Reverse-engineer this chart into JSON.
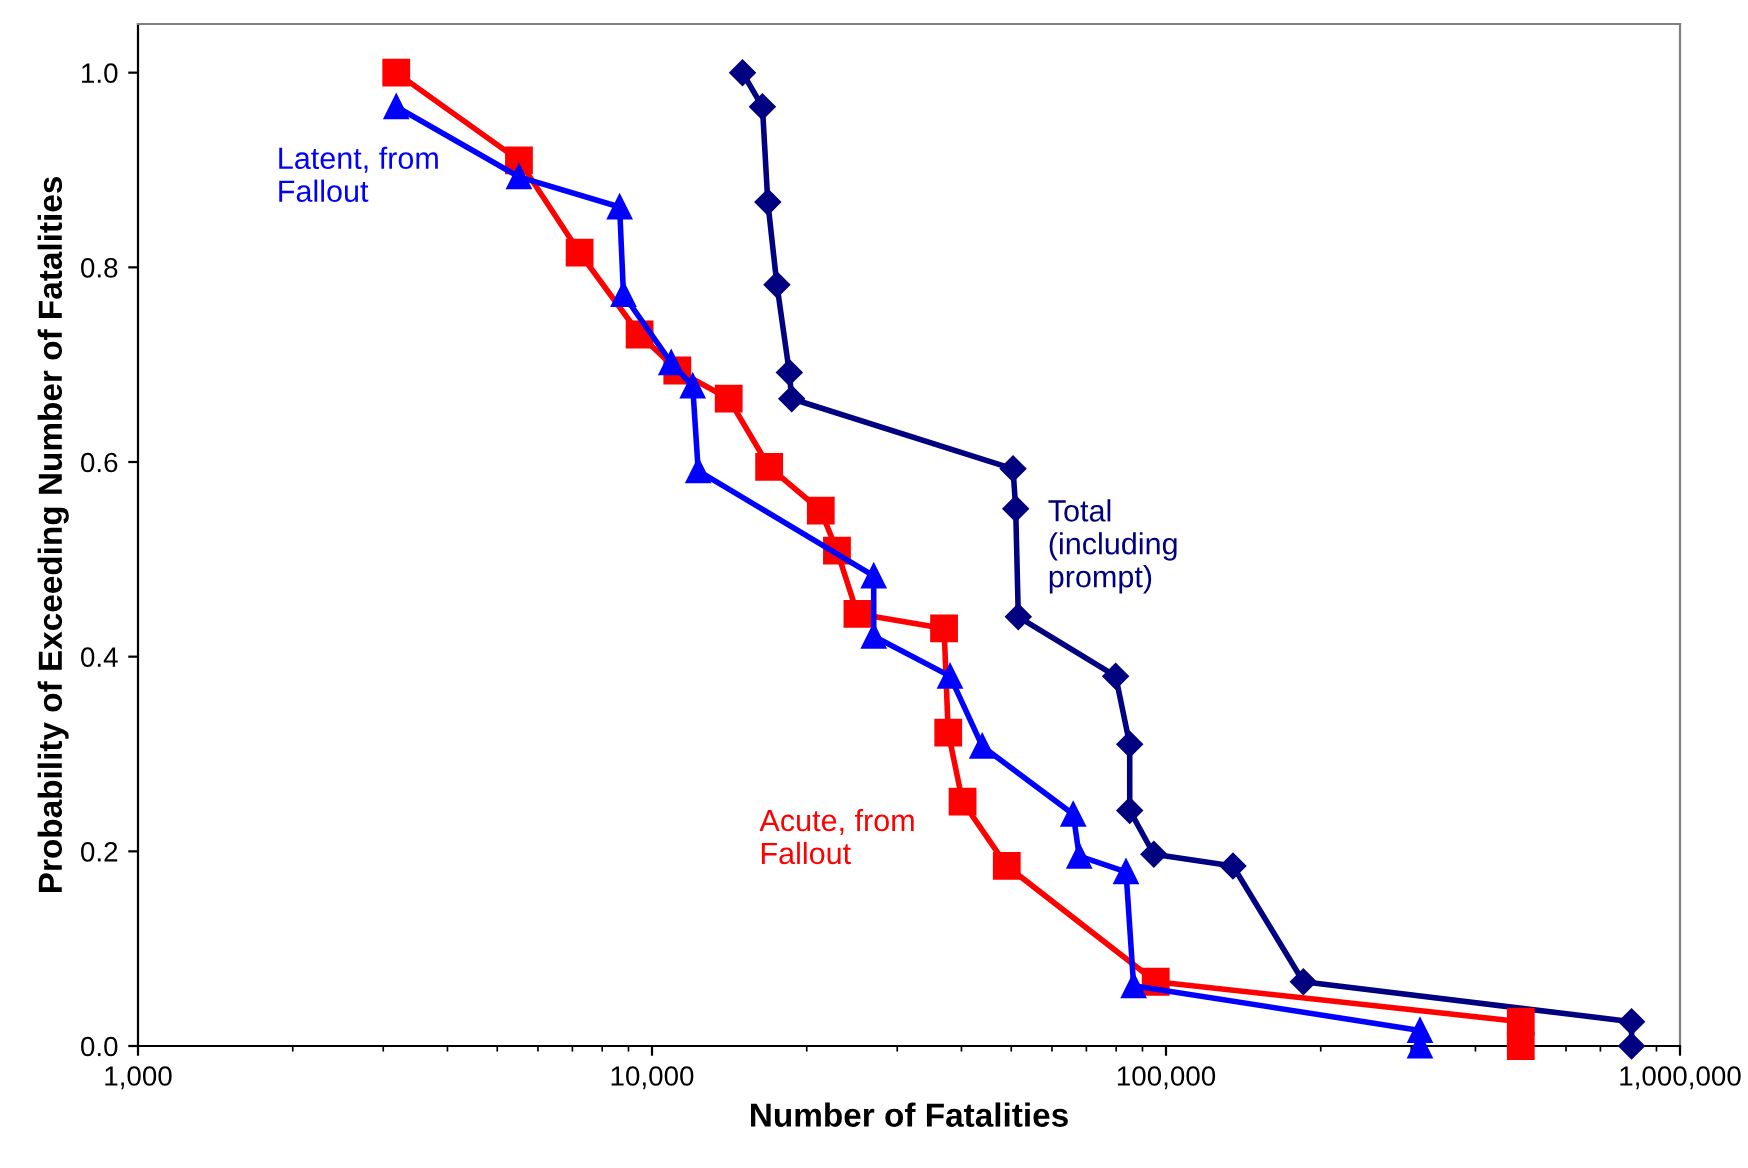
{
  "chart_data": {
    "type": "line",
    "xlabel": "Number of Fatalities",
    "ylabel": "Probability of Exceeding Number of Fatalities",
    "log": "x",
    "xlim": [
      1000,
      1000000
    ],
    "xticks": [
      {
        "value": 1000,
        "label": "1,000"
      },
      {
        "value": 10000,
        "label": "10,000"
      },
      {
        "value": 100000,
        "label": "100,000"
      },
      {
        "value": 1000000,
        "label": "1,000,000"
      }
    ],
    "ylim": [
      0,
      1.05
    ],
    "yticks": [
      {
        "value": 0,
        "label": "0.0"
      },
      {
        "value": 0.2,
        "label": "0.2"
      },
      {
        "value": 0.4,
        "label": "0.4"
      },
      {
        "value": 0.6,
        "label": "0.6"
      },
      {
        "value": 0.8,
        "label": "0.8"
      },
      {
        "value": 1.0,
        "label": "1.0"
      }
    ],
    "grid": false,
    "legend": false,
    "line_style": "solid",
    "series": [
      {
        "name": "Latent, from Fallout",
        "color": "#0000ff",
        "marker": "triangle",
        "x": [
          3180,
          5510,
          8650,
          8800,
          10900,
          12000,
          12300,
          27000,
          27000,
          38000,
          43900,
          66000,
          67800,
          83600,
          86500,
          312000,
          312000
        ],
        "values": [
          0.965,
          0.893,
          0.862,
          0.772,
          0.702,
          0.678,
          0.591,
          0.483,
          0.421,
          0.38,
          0.308,
          0.238,
          0.195,
          0.179,
          0.062,
          0.016,
          0.0
        ]
      },
      {
        "name": "Acute, from Fallout",
        "color": "#ff0000",
        "marker": "square",
        "x": [
          3180,
          5510,
          7230,
          9460,
          11200,
          14100,
          16900,
          21300,
          22900,
          25100,
          37000,
          37700,
          40200,
          49000,
          95500,
          490000,
          490000
        ],
        "values": [
          1.0,
          0.91,
          0.815,
          0.731,
          0.694,
          0.665,
          0.595,
          0.55,
          0.509,
          0.444,
          0.429,
          0.322,
          0.251,
          0.185,
          0.066,
          0.025,
          0.0
        ]
      },
      {
        "name": "Total (including prompt)",
        "color": "#000080",
        "marker": "diamond",
        "x": [
          15000,
          16400,
          16800,
          17500,
          18500,
          18700,
          50400,
          51000,
          51600,
          79800,
          85000,
          85000,
          94700,
          135000,
          185000,
          805000,
          805000
        ],
        "values": [
          1.0,
          0.965,
          0.867,
          0.782,
          0.692,
          0.665,
          0.593,
          0.552,
          0.441,
          0.38,
          0.31,
          0.242,
          0.197,
          0.185,
          0.066,
          0.025,
          0.0
        ]
      }
    ]
  }
}
